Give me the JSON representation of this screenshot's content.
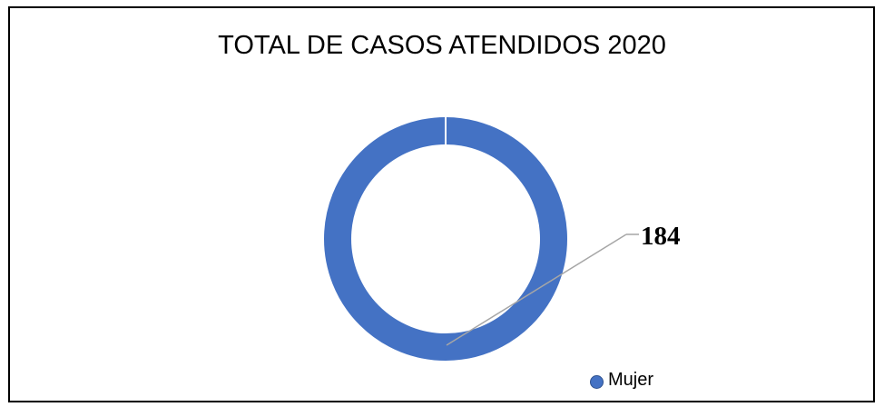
{
  "chart_data": {
    "type": "pie",
    "subtype": "donut",
    "title": "TOTAL DE CASOS ATENDIDOS 2020",
    "categories": [
      "Mujer"
    ],
    "values": [
      184
    ],
    "data_labels": [
      "184"
    ],
    "colors": [
      "#4472C4"
    ],
    "legend": "bottom-right",
    "legend_entries": [
      "Mujer"
    ]
  }
}
